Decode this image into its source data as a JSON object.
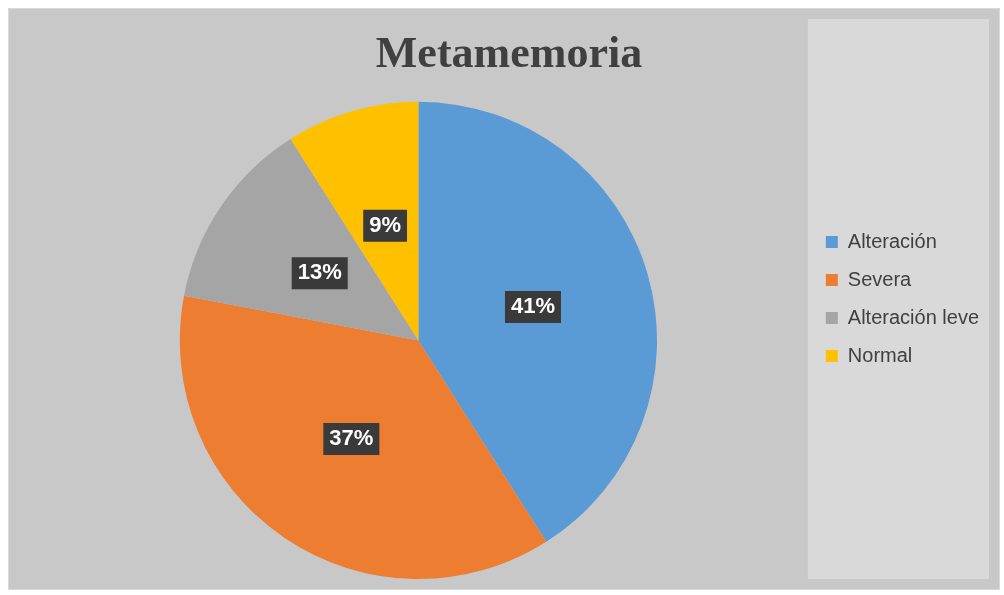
{
  "chart_data": {
    "type": "pie",
    "title": "Metamemoria",
    "categories": [
      "Alteración",
      "Severa",
      "Alteración leve",
      "Normal"
    ],
    "values": [
      41,
      37,
      13,
      9
    ],
    "colors": [
      "#5b9bd5",
      "#ed7d31",
      "#a5a5a5",
      "#ffc000"
    ],
    "value_labels": [
      "41%",
      "37%",
      "13%",
      "9%"
    ],
    "legend": "right"
  }
}
